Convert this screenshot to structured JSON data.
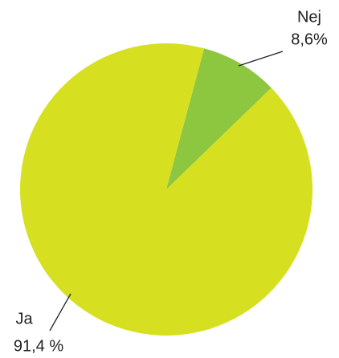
{
  "chart_data": {
    "type": "pie",
    "categories": [
      "Nej",
      "Ja"
    ],
    "values": [
      8.6,
      91.4
    ],
    "value_labels": [
      "8,6%",
      "91,4 %"
    ],
    "colors": [
      "#8dc63f",
      "#d6e021"
    ]
  }
}
